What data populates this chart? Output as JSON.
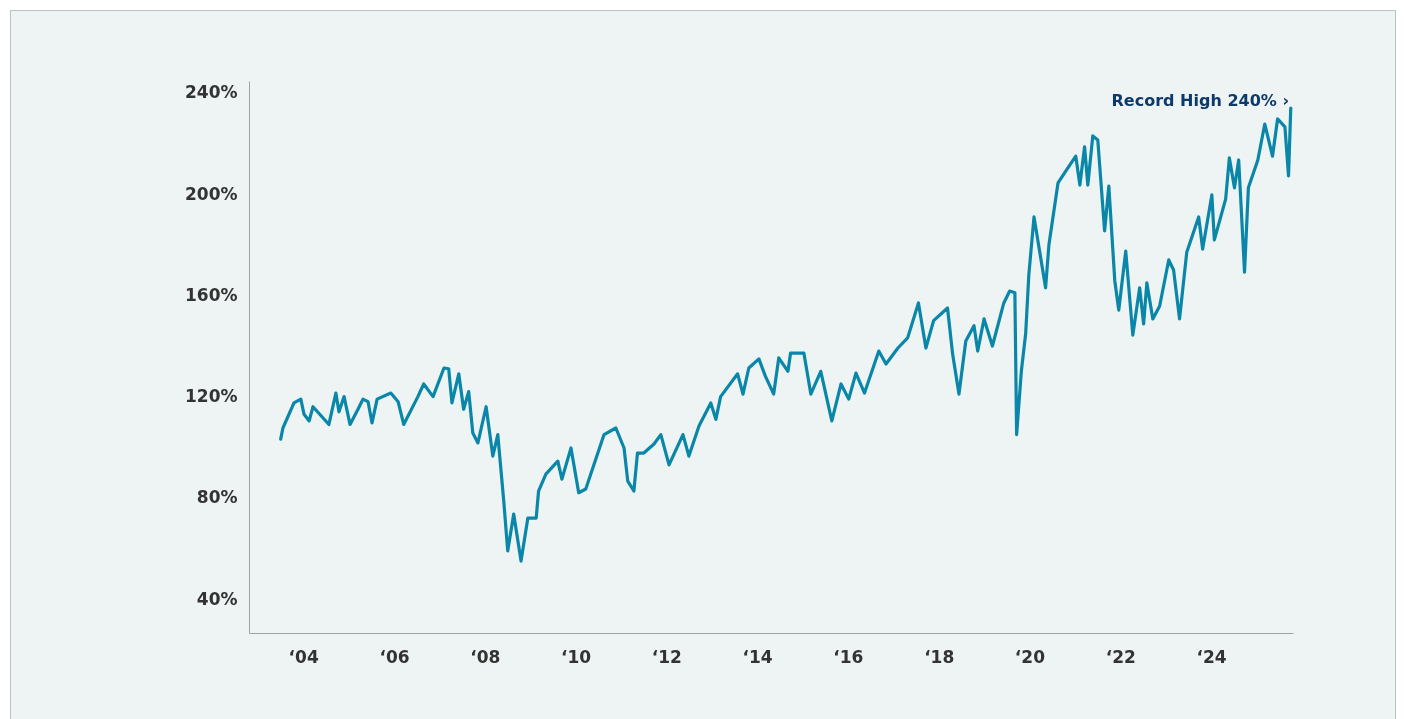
{
  "chart_data": {
    "type": "line",
    "annotations": [
      "Record High 240% ›"
    ],
    "xlim": [
      "2002-10-22",
      "2025-10-22"
    ],
    "xticks": [
      {
        "value": "2004",
        "label": "‘04"
      },
      {
        "value": "2006",
        "label": "‘06"
      },
      {
        "value": "2008",
        "label": "‘08"
      },
      {
        "value": "2010",
        "label": "‘10"
      },
      {
        "value": "2012",
        "label": "‘12"
      },
      {
        "value": "2014",
        "label": "‘14"
      },
      {
        "value": "2016",
        "label": "‘16"
      },
      {
        "value": "2018",
        "label": "‘18"
      },
      {
        "value": "2020",
        "label": "‘20"
      },
      {
        "value": "2022",
        "label": "‘22"
      },
      {
        "value": "2024",
        "label": "‘24"
      }
    ],
    "ylim": [
      26.6,
      244.7
    ],
    "yticks": [
      {
        "value": 40,
        "label": "40%"
      },
      {
        "value": 80,
        "label": "80%"
      },
      {
        "value": 120,
        "label": "120%"
      },
      {
        "value": 160,
        "label": "160%"
      },
      {
        "value": 200,
        "label": "200%"
      },
      {
        "value": 240,
        "label": "240%"
      }
    ],
    "grid": false,
    "marker": "none",
    "line_style": "solid",
    "series": [
      {
        "color": "#0a87a8",
        "x": [
          "2003-07-04",
          "2003-07-22",
          "2003-10-19",
          "2003-12-13",
          "2004-01-08",
          "2004-02-18",
          "2004-03-20",
          "2004-07-26",
          "2004-09-20",
          "2004-10-15",
          "2004-11-25",
          "2005-01-12",
          "2005-03-17",
          "2005-04-26",
          "2005-06-06",
          "2005-07-08",
          "2005-08-18",
          "2005-12-06",
          "2006-02-03",
          "2006-03-20",
          "2006-07-12",
          "2006-08-28",
          "2006-11-11",
          "2007-02-07",
          "2007-03-17",
          "2007-04-12",
          "2007-06-06",
          "2007-07-15",
          "2007-08-25",
          "2007-09-27",
          "2007-11-07",
          "2008-01-12",
          "2008-03-06",
          "2008-04-15",
          "2008-06-02",
          "2008-07-04",
          "2008-08-21",
          "2008-10-19",
          "2008-12-13",
          "2009-02-18",
          "2009-03-09",
          "2009-05-07",
          "2009-08-11",
          "2009-09-13",
          "2009-11-25",
          "2010-01-26",
          "2010-03-24",
          "2010-08-18",
          "2010-11-21",
          "2011-01-26",
          "2011-02-25",
          "2011-04-15",
          "2011-05-14",
          "2011-07-04",
          "2011-09-24",
          "2011-11-18",
          "2012-01-23",
          "2012-05-14",
          "2012-07-01",
          "2012-09-20",
          "2012-12-24",
          "2013-02-03",
          "2013-03-13",
          "2013-07-28",
          "2013-09-09",
          "2013-10-26",
          "2014-01-15",
          "2014-03-09",
          "2014-05-14",
          "2014-06-24",
          "2014-09-06",
          "2014-09-27",
          "2015-01-12",
          "2015-03-09",
          "2015-05-28",
          "2015-08-25",
          "2015-11-07",
          "2016-01-08",
          "2016-03-06",
          "2016-05-14",
          "2016-09-06",
          "2016-11-03",
          "2017-02-07",
          "2017-04-26",
          "2017-07-22",
          "2017-09-20",
          "2017-11-21",
          "2018-03-13",
          "2018-04-23",
          "2018-06-13",
          "2018-08-07",
          "2018-10-12",
          "2018-11-11",
          "2019-01-01",
          "2019-03-09",
          "2019-06-09",
          "2019-07-26",
          "2019-09-06",
          "2019-09-20",
          "2019-10-28",
          "2019-12-02",
          "2019-12-27",
          "2020-02-07",
          "2020-05-10",
          "2020-06-06",
          "2020-08-18",
          "2020-10-26",
          "2021-01-08",
          "2021-02-10",
          "2021-03-20",
          "2021-04-15",
          "2021-05-25",
          "2021-07-04",
          "2021-08-28",
          "2021-10-01",
          "2021-11-18",
          "2021-12-20",
          "2022-02-14",
          "2022-04-12",
          "2022-06-06",
          "2022-07-08",
          "2022-08-03",
          "2022-09-20",
          "2022-11-14",
          "2023-01-26",
          "2023-03-06",
          "2023-04-23",
          "2023-06-20",
          "2023-09-24",
          "2023-10-26",
          "2024-01-08",
          "2024-01-28",
          "2024-04-28",
          "2024-05-28",
          "2024-07-08",
          "2024-08-11",
          "2024-09-27",
          "2024-10-28",
          "2025-01-12",
          "2025-03-09",
          "2025-05-10",
          "2025-06-20",
          "2025-08-18",
          "2025-09-16",
          "2025-10-04"
        ],
        "values": [
          103.2,
          107.6,
          117.5,
          119,
          113,
          110.4,
          116,
          109,
          121.4,
          114,
          120,
          109,
          115,
          119,
          118,
          109.6,
          119,
          121.4,
          118,
          109,
          120,
          125,
          120,
          131.3,
          131,
          117.5,
          129,
          115,
          122,
          105.6,
          101.7,
          116,
          96.5,
          105,
          78.7,
          59,
          73.6,
          55,
          72,
          72,
          82.7,
          89.4,
          94.5,
          87.4,
          99.7,
          82,
          83.5,
          105,
          107.6,
          99.7,
          86.6,
          82.7,
          97.7,
          97.7,
          101.3,
          105,
          93,
          105,
          96.5,
          108.4,
          117.5,
          111,
          120,
          129,
          121,
          131.3,
          134.9,
          128,
          121,
          135.3,
          130,
          137.2,
          137.2,
          121,
          130,
          110.4,
          125,
          119,
          129.3,
          121.4,
          138,
          132.9,
          139.2,
          143.2,
          157,
          139.2,
          150,
          155,
          136.8,
          121,
          142,
          148,
          138,
          150.7,
          140,
          157,
          161.7,
          161,
          105,
          130,
          145,
          168,
          191,
          163,
          180,
          204.4,
          209.6,
          215,
          203.6,
          218.7,
          203.6,
          223,
          221.4,
          185.5,
          203.2,
          165.7,
          154.2,
          177.5,
          144.3,
          163,
          148.7,
          164.9,
          150.7,
          155.8,
          174,
          170,
          150.7,
          177,
          191,
          178.3,
          199.7,
          181.9,
          198,
          214.3,
          202.5,
          213.5,
          169.2,
          202.5,
          213.5,
          227.7,
          215,
          229.7,
          226.6,
          207.2,
          234
        ]
      }
    ]
  }
}
